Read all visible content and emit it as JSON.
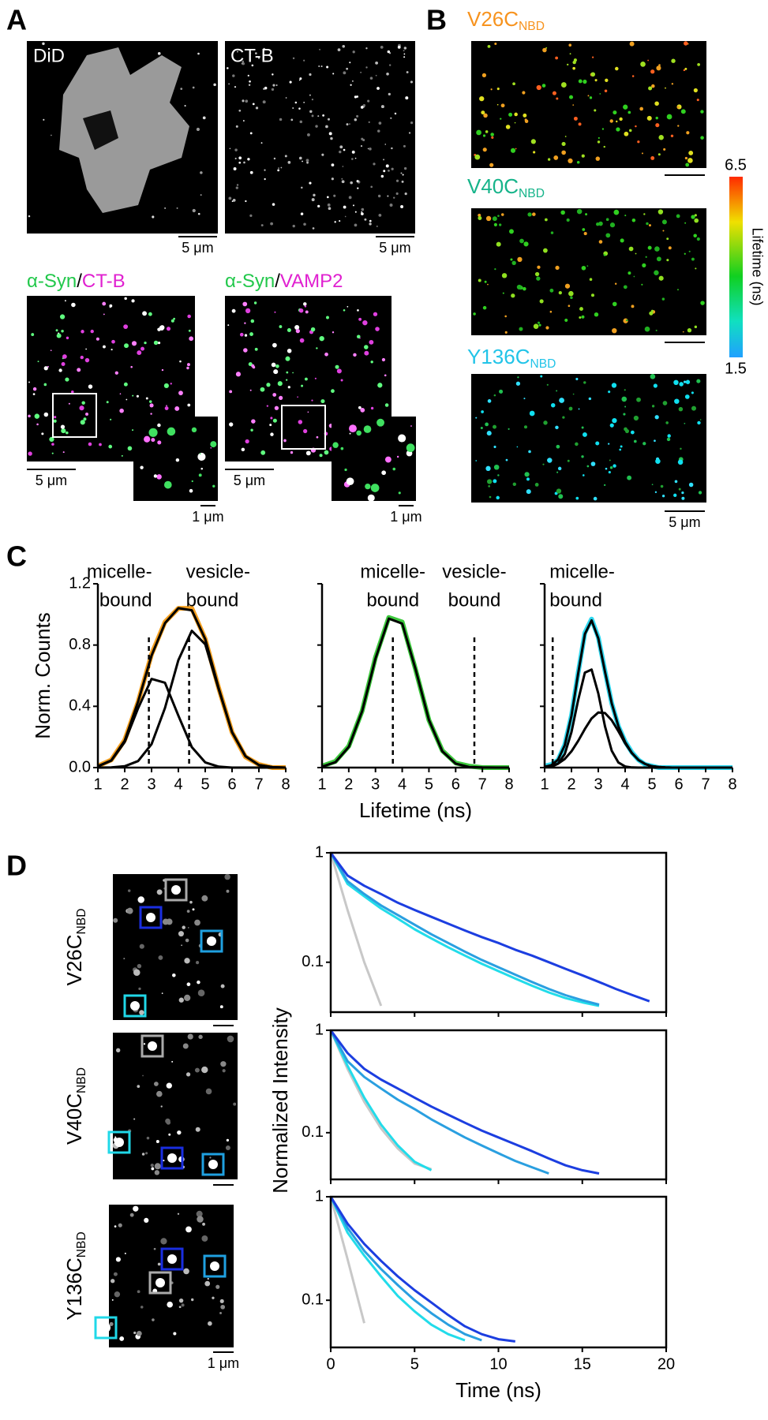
{
  "panel_labels": [
    "A",
    "B",
    "C",
    "D"
  ],
  "panel_a": {
    "images": [
      {
        "label": "DiD",
        "scale_bar": "5 μm"
      },
      {
        "label": "CT-B",
        "scale_bar": "5 μm"
      }
    ],
    "overlays": [
      {
        "label_parts": [
          {
            "text": "α-Syn",
            "color": "#22c84b"
          },
          {
            "text": "/",
            "color": "#000000"
          },
          {
            "text": "CT-B",
            "color": "#e020d0"
          }
        ],
        "scale_bar": "5 μm",
        "inset_scale_bar": "1 μm"
      },
      {
        "label_parts": [
          {
            "text": "α-Syn",
            "color": "#22c84b"
          },
          {
            "text": "/",
            "color": "#000000"
          },
          {
            "text": "VAMP2",
            "color": "#e020d0"
          }
        ],
        "scale_bar": "5 μm",
        "inset_scale_bar": "1 μm"
      }
    ]
  },
  "panel_b": {
    "images": [
      {
        "label": "V26C",
        "label_sub": "NBD",
        "color": "#f7931e"
      },
      {
        "label": "V40C",
        "label_sub": "NBD",
        "color": "#16b48a"
      },
      {
        "label": "Y136C",
        "label_sub": "NBD",
        "color": "#22c4e8"
      }
    ],
    "scale_bar": "5 μm",
    "colorbar": {
      "title": "Lifetime (ns)",
      "max": 6.5,
      "min": 1.5
    }
  },
  "panel_d": {
    "images": [
      {
        "label": "V26C",
        "label_sub": "NBD"
      },
      {
        "label": "V40C",
        "label_sub": "NBD"
      },
      {
        "label": "Y136C",
        "label_sub": "NBD"
      }
    ],
    "scale_bar": "1 μm"
  },
  "chart_data": [
    {
      "type": "line",
      "frame": "axes",
      "ylabel": "Norm. Counts",
      "x": [
        1,
        1.5,
        2,
        2.5,
        3,
        3.5,
        4,
        4.5,
        5,
        5.5,
        6,
        6.5,
        7,
        7.5,
        8
      ],
      "xlim": [
        1,
        8
      ],
      "xticks": [
        1,
        2,
        3,
        4,
        5,
        6,
        7,
        8
      ],
      "ylim": [
        0,
        1.2
      ],
      "yticks": [
        {
          "value": 0,
          "label": "0.0"
        },
        0.4,
        0.8,
        1.2
      ],
      "reference_lines": [
        2.9,
        4.4
      ],
      "annotations": [
        {
          "lines": [
            "micelle-",
            "bound"
          ]
        },
        {
          "lines": [
            "vesicle-",
            "bound"
          ]
        }
      ],
      "series": [
        {
          "color": "#f5a020",
          "values": [
            0.01,
            0.05,
            0.18,
            0.43,
            0.74,
            0.95,
            1.04,
            1.04,
            0.84,
            0.52,
            0.23,
            0.07,
            0.02,
            0,
            0
          ]
        },
        {
          "color": "#000000",
          "values": [
            0.008,
            0.047,
            0.176,
            0.431,
            0.732,
            0.943,
            1.041,
            1.027,
            0.839,
            0.519,
            0.231,
            0.074,
            0.017,
            0.003,
            0
          ]
        },
        {
          "color": "#000000",
          "values": [
            0.008,
            0.046,
            0.167,
            0.388,
            0.579,
            0.554,
            0.339,
            0.134,
            0.034,
            0.006,
            0,
            0,
            0,
            0,
            0
          ]
        },
        {
          "color": "#000000",
          "values": [
            0,
            0.001,
            0.009,
            0.043,
            0.153,
            0.389,
            0.702,
            0.893,
            0.805,
            0.513,
            0.231,
            0.074,
            0.017,
            0.003,
            0
          ]
        }
      ]
    },
    {
      "type": "line",
      "frame": "axes",
      "xlabel": "Lifetime (ns)",
      "show_ytick_labels": false,
      "x": [
        1,
        1.5,
        2,
        2.5,
        3,
        3.5,
        4,
        4.5,
        5,
        5.5,
        6,
        6.5,
        7,
        7.5,
        8
      ],
      "xlim": [
        1,
        8
      ],
      "xticks": [
        1,
        2,
        3,
        4,
        5,
        6,
        7,
        8
      ],
      "ylim": [
        0,
        1.2
      ],
      "yticks": [
        0,
        0.4,
        0.8,
        1.2
      ],
      "reference_lines": [
        3.65,
        6.7
      ],
      "annotations": [
        {
          "lines": [
            "micelle-",
            "bound"
          ]
        },
        {
          "lines": [
            "vesicle-",
            "bound"
          ]
        }
      ],
      "series": [
        {
          "color": "#3cc83c",
          "values": [
            0.01,
            0.04,
            0.14,
            0.37,
            0.72,
            0.98,
            0.95,
            0.64,
            0.31,
            0.11,
            0.03,
            0.01,
            0,
            0,
            0
          ]
        },
        {
          "color": "#000000",
          "values": [
            0.006,
            0.035,
            0.135,
            0.368,
            0.712,
            0.973,
            0.94,
            0.642,
            0.311,
            0.106,
            0.026,
            0.004,
            0.001,
            0,
            0
          ]
        }
      ]
    },
    {
      "type": "line",
      "frame": "axes",
      "show_ytick_labels": false,
      "x": [
        1,
        1.25,
        1.5,
        1.75,
        2,
        2.25,
        2.5,
        2.75,
        3,
        3.25,
        3.5,
        3.75,
        4,
        4.25,
        4.5,
        4.75,
        5,
        5.25,
        5.5,
        5.75,
        6,
        6.25,
        6.5,
        6.75,
        7,
        7.25,
        7.5,
        7.75,
        8
      ],
      "xlim": [
        1,
        8
      ],
      "xticks": [
        1,
        2,
        3,
        4,
        5,
        6,
        7,
        8
      ],
      "ylim": [
        0,
        1.2
      ],
      "yticks": [
        0,
        0.4,
        0.8,
        1.2
      ],
      "reference_lines": [
        1.3
      ],
      "annotations": [
        {
          "lines": [
            "micelle-",
            "bound"
          ]
        }
      ],
      "series": [
        {
          "color": "#30d8f0",
          "values": [
            0.01,
            0.02,
            0.05,
            0.15,
            0.34,
            0.62,
            0.88,
            0.97,
            0.85,
            0.63,
            0.42,
            0.27,
            0.17,
            0.1,
            0.05,
            0.02,
            0.01,
            0,
            0,
            0,
            0,
            0,
            0,
            0,
            0,
            0,
            0,
            0,
            0
          ]
        },
        {
          "color": "#000000",
          "values": [
            0.005,
            0.016,
            0.051,
            0.145,
            0.338,
            0.615,
            0.872,
            0.961,
            0.844,
            0.625,
            0.42,
            0.269,
            0.167,
            0.096,
            0.049,
            0.023,
            0.009,
            0.004,
            0.001,
            0,
            0,
            0,
            0,
            0,
            0,
            0,
            0,
            0,
            0
          ]
        },
        {
          "color": "#000000",
          "values": [
            0.001,
            0.005,
            0.025,
            0.088,
            0.231,
            0.441,
            0.62,
            0.64,
            0.484,
            0.269,
            0.11,
            0.033,
            0.007,
            0.001,
            0,
            0,
            0,
            0,
            0,
            0,
            0,
            0,
            0,
            0,
            0,
            0,
            0,
            0,
            0
          ]
        },
        {
          "color": "#000000",
          "values": [
            0.004,
            0.011,
            0.026,
            0.056,
            0.106,
            0.174,
            0.252,
            0.321,
            0.36,
            0.356,
            0.309,
            0.237,
            0.159,
            0.095,
            0.049,
            0.023,
            0.009,
            0.004,
            0.001,
            0,
            0,
            0,
            0,
            0,
            0,
            0,
            0,
            0,
            0
          ]
        }
      ]
    },
    {
      "type": "line",
      "frame": "box",
      "log_scale": true,
      "show_xtick_labels": false,
      "x": [
        0,
        1,
        2,
        3,
        4,
        5,
        6,
        7,
        8,
        9,
        10,
        11,
        12,
        13,
        14,
        15,
        16,
        17,
        18,
        19,
        20
      ],
      "xlim": [
        0,
        20
      ],
      "xticks": [
        0,
        5,
        10,
        15,
        20
      ],
      "ylim": [
        0.035,
        1
      ],
      "yticks": [
        1,
        0.1
      ],
      "series": [
        {
          "color": "#c8c8c8",
          "values": [
            1,
            0.3,
            0.1,
            0.04,
            null,
            null,
            null,
            null,
            null,
            null,
            null,
            null,
            null,
            null,
            null,
            null,
            null,
            null,
            null,
            null,
            null
          ]
        },
        {
          "color": "#22dcea",
          "values": [
            1,
            0.52,
            0.4,
            0.31,
            0.25,
            0.2,
            0.165,
            0.137,
            0.115,
            0.097,
            0.083,
            0.071,
            0.061,
            0.053,
            0.047,
            0.043,
            0.04,
            null,
            null,
            null,
            null
          ]
        },
        {
          "color": "#2a9fe0",
          "values": [
            1,
            0.55,
            0.42,
            0.33,
            0.27,
            0.22,
            0.18,
            0.15,
            0.125,
            0.105,
            0.09,
            0.077,
            0.066,
            0.057,
            0.05,
            0.045,
            0.041,
            null,
            null,
            null,
            null
          ]
        },
        {
          "color": "#1c3ee0",
          "values": [
            1,
            0.62,
            0.5,
            0.42,
            0.35,
            0.3,
            0.26,
            0.225,
            0.195,
            0.17,
            0.15,
            0.13,
            0.115,
            0.1,
            0.087,
            0.076,
            0.066,
            0.057,
            0.05,
            0.044,
            null
          ]
        }
      ]
    },
    {
      "type": "line",
      "frame": "box",
      "log_scale": true,
      "show_xtick_labels": false,
      "ylabel": "Normalized Intensity",
      "x": [
        0,
        1,
        2,
        3,
        4,
        5,
        6,
        7,
        8,
        9,
        10,
        11,
        12,
        13,
        14,
        15,
        16,
        17,
        18,
        19,
        20
      ],
      "xlim": [
        0,
        20
      ],
      "xticks": [
        0,
        5,
        10,
        15,
        20
      ],
      "ylim": [
        0.035,
        1
      ],
      "yticks": [
        1,
        0.1
      ],
      "series": [
        {
          "color": "#c8c8c8",
          "values": [
            1,
            0.42,
            0.2,
            0.11,
            0.07,
            0.05,
            0.044,
            null,
            null,
            null,
            null,
            null,
            null,
            null,
            null,
            null,
            null,
            null,
            null,
            null,
            null
          ]
        },
        {
          "color": "#22dcea",
          "values": [
            1,
            0.45,
            0.22,
            0.12,
            0.075,
            0.052,
            0.043,
            null,
            null,
            null,
            null,
            null,
            null,
            null,
            null,
            null,
            null,
            null,
            null,
            null,
            null
          ]
        },
        {
          "color": "#2a9fe0",
          "values": [
            1,
            0.5,
            0.35,
            0.27,
            0.21,
            0.17,
            0.135,
            0.11,
            0.09,
            0.075,
            0.063,
            0.053,
            0.046,
            0.04,
            null,
            null,
            null,
            null,
            null,
            null,
            null
          ]
        },
        {
          "color": "#1c3ee0",
          "values": [
            1,
            0.6,
            0.42,
            0.33,
            0.27,
            0.22,
            0.18,
            0.15,
            0.125,
            0.105,
            0.09,
            0.077,
            0.066,
            0.056,
            0.048,
            0.043,
            0.04,
            null,
            null,
            null,
            null
          ]
        }
      ]
    },
    {
      "type": "line",
      "frame": "box",
      "log_scale": true,
      "xlabel": "Time (ns)",
      "x": [
        0,
        1,
        2,
        3,
        4,
        5,
        6,
        7,
        8,
        9,
        10,
        11,
        12,
        13,
        14,
        15,
        16,
        17,
        18,
        19,
        20
      ],
      "xlim": [
        0,
        20
      ],
      "xticks": [
        0,
        5,
        10,
        15,
        20
      ],
      "ylim": [
        0.035,
        1
      ],
      "yticks": [
        1,
        0.1
      ],
      "series": [
        {
          "color": "#c8c8c8",
          "values": [
            1,
            0.25,
            0.06,
            null,
            null,
            null,
            null,
            null,
            null,
            null,
            null,
            null,
            null,
            null,
            null,
            null,
            null,
            null,
            null,
            null,
            null
          ]
        },
        {
          "color": "#22dcea",
          "values": [
            1,
            0.45,
            0.27,
            0.17,
            0.11,
            0.078,
            0.058,
            0.047,
            0.041,
            null,
            null,
            null,
            null,
            null,
            null,
            null,
            null,
            null,
            null,
            null,
            null
          ]
        },
        {
          "color": "#2a9fe0",
          "values": [
            1,
            0.5,
            0.3,
            0.2,
            0.14,
            0.1,
            0.075,
            0.058,
            0.047,
            0.041,
            null,
            null,
            null,
            null,
            null,
            null,
            null,
            null,
            null,
            null,
            null
          ]
        },
        {
          "color": "#1c3ee0",
          "values": [
            1,
            0.55,
            0.35,
            0.24,
            0.17,
            0.125,
            0.095,
            0.072,
            0.056,
            0.047,
            0.042,
            0.04,
            null,
            null,
            null,
            null,
            null,
            null,
            null,
            null,
            null
          ]
        }
      ]
    }
  ]
}
